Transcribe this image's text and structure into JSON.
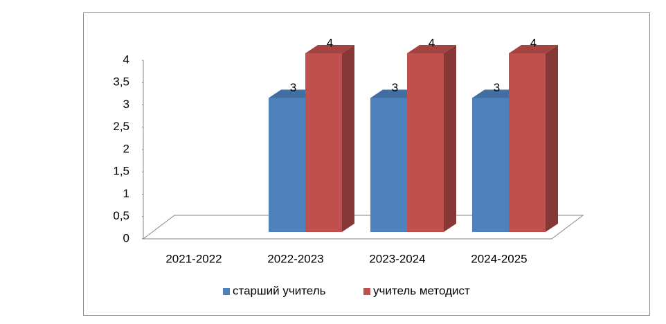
{
  "chart_data": {
    "type": "bar3d",
    "categories": [
      "2021-2022",
      "2022-2023",
      "2023-2024",
      "2024-2025"
    ],
    "series": [
      {
        "name": "старший учитель",
        "color": "#4f81bd",
        "values": [
          null,
          3,
          3,
          3
        ]
      },
      {
        "name": "учитель методист",
        "color": "#c0504d",
        "values": [
          null,
          4,
          4,
          4
        ]
      }
    ],
    "ylim": [
      0,
      4
    ],
    "yticks": [
      0,
      {
        "value": 0.5,
        "label": "0,5"
      },
      1,
      {
        "value": 1.5,
        "label": "1,5"
      },
      2,
      {
        "value": 2.5,
        "label": "2,5"
      },
      3,
      {
        "value": 3.5,
        "label": "3,5"
      },
      4
    ],
    "grid": false,
    "legend": "bottom"
  }
}
